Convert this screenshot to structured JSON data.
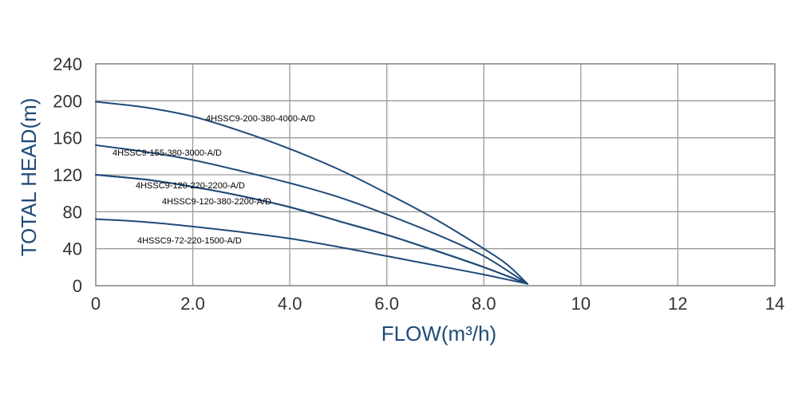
{
  "chart_data": {
    "type": "line",
    "xlabel": "FLOW(m³/h)",
    "ylabel": "TOTAL HEAD(m)",
    "xlim": [
      0,
      14
    ],
    "ylim": [
      0,
      240
    ],
    "x_ticks": [
      0,
      2,
      4,
      6,
      8,
      10,
      12,
      14
    ],
    "x_tick_labels": [
      "0",
      "2.0",
      "4.0",
      "6.0",
      "8.0",
      "10",
      "12",
      "14"
    ],
    "y_ticks": [
      0,
      40,
      80,
      120,
      160,
      200,
      240
    ],
    "y_tick_labels": [
      "0",
      "40",
      "80",
      "120",
      "160",
      "200",
      "240"
    ],
    "grid": true,
    "line_color": "#1f4a78",
    "series": [
      {
        "name": "4HSSC9-200-380-4000-A/D",
        "x": [
          0,
          1,
          2,
          3,
          4,
          5,
          6,
          7,
          8,
          8.5,
          8.9
        ],
        "y": [
          199,
          193,
          183,
          167,
          148,
          126,
          100,
          72,
          40,
          22,
          2
        ]
      },
      {
        "name": "4HSSC9-155-380-3000-A/D",
        "x": [
          0,
          1,
          2,
          3,
          4,
          5,
          6,
          7,
          8,
          8.9
        ],
        "y": [
          152,
          145,
          136,
          124,
          111,
          96,
          77,
          56,
          32,
          2
        ]
      },
      {
        "name": "4HSSC9-120-220-2200-A/D",
        "x": [
          0,
          1,
          2,
          3,
          4,
          5,
          6,
          7,
          8,
          8.9
        ],
        "y": [
          120,
          115,
          107,
          97,
          85,
          70,
          55,
          38,
          20,
          2
        ]
      },
      {
        "name": "4HSSC9-120-380-2200-A/D",
        "x": [
          0,
          1,
          2,
          3,
          4,
          5,
          6,
          7,
          8,
          8.9
        ],
        "y": [
          120,
          115,
          107,
          97,
          85,
          70,
          55,
          38,
          20,
          2
        ]
      },
      {
        "name": "4HSSC9-72-220-1500-A/D",
        "x": [
          0,
          1,
          2,
          3,
          4,
          5,
          6,
          7,
          8,
          8.9
        ],
        "y": [
          72,
          69,
          64,
          58,
          51,
          42,
          32,
          22,
          12,
          2
        ]
      }
    ]
  }
}
